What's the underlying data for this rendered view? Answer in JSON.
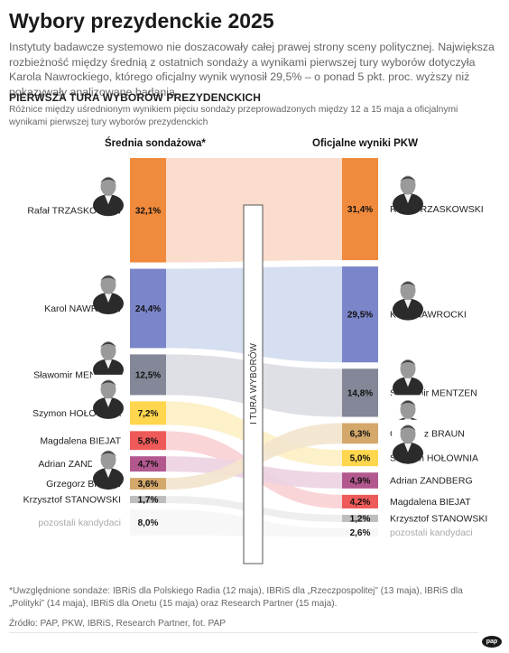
{
  "header": {
    "title": "Wybory prezydenckie 2025",
    "lead": "Instytuty badawcze systemowo nie doszacowały całej prawej strony sceny politycznej. Największa rozbieżność między średnią z ostatnich sondaży a wynikami pierwszej tury wyborów dotyczyła Karola Nawrockiego, którego oficjalny wynik wynosił 29,5% – o ponad 5 pkt. proc. wyższy niż pokazywały analizowane badania."
  },
  "section": {
    "title": "PIERWSZA TURA WYBORÓW PREZYDENCKICH",
    "description": "Różnice między uśrednionym wynikiem pięciu sondaży przeprowadzonych między 12 a 15 maja  a oficjalnymi wynikami pierwszej tury wyborów prezydenckich"
  },
  "chart_data": {
    "type": "bar",
    "left_title": "Średnia sondażowa*",
    "right_title": "Oficjalne wyniki PKW",
    "center_label": "I TURA WYBORÓW",
    "value_suffix": "%",
    "decimal_separator": ",",
    "candidates": [
      {
        "id": "trzaskowski",
        "name": "Rafał TRZASKOWSKI",
        "poll": 32.1,
        "result": 31.4,
        "color": "#f08a3c",
        "flow_color": "#f9d9c8",
        "photo": true,
        "muted": false
      },
      {
        "id": "nawrocki",
        "name": "Karol NAWROCKI",
        "poll": 24.4,
        "result": 29.5,
        "color": "#7b85c9",
        "flow_color": "#d2dcef",
        "photo": true,
        "muted": false
      },
      {
        "id": "mentzen",
        "name": "Sławomir MENTZEN",
        "poll": 12.5,
        "result": 14.8,
        "color": "#838797",
        "flow_color": "#dcdde3",
        "photo": true,
        "muted": false
      },
      {
        "id": "holownia",
        "name": "Szymon HOŁOWNIA",
        "poll": 7.2,
        "result": 5.0,
        "color": "#ffd64d",
        "flow_color": "#fdf0c4",
        "photo": true,
        "muted": false
      },
      {
        "id": "biejat",
        "name": "Magdalena BIEJAT",
        "poll": 5.8,
        "result": 4.2,
        "color": "#ee5a59",
        "flow_color": "#fad0d4",
        "photo": false,
        "muted": false
      },
      {
        "id": "zandberg",
        "name": "Adrian ZANDBERG",
        "poll": 4.7,
        "result": 4.9,
        "color": "#b2588f",
        "flow_color": "#ecd2e2",
        "photo": false,
        "muted": false
      },
      {
        "id": "braun",
        "name": "Grzegorz BRAUN",
        "poll": 3.6,
        "result": 6.3,
        "color": "#d4a86a",
        "flow_color": "#f3e4cd",
        "photo": true,
        "muted": false
      },
      {
        "id": "stanowski",
        "name": "Krzysztof STANOWSKI",
        "poll": 1.7,
        "result": 1.2,
        "color": "#bdbdbd",
        "flow_color": "#ececec",
        "photo": false,
        "muted": false
      },
      {
        "id": "pozostali",
        "name": "pozostali kandydaci",
        "poll": 8.0,
        "result": 2.6,
        "color": "#f7f7f7",
        "flow_color": "#f6f6f6",
        "photo": false,
        "muted": true
      }
    ]
  },
  "footer": {
    "note": "*Uwzględnione sondaże: IBRiS dla Polskiego Radia (12 maja), IBRiS dla „Rzeczpospolitej” (13 maja), IBRiS dla „Polityki” (14 maja), IBRiS dla Onetu (15 maja) oraz Research Partner (15 maja).",
    "source": "Źródło: PAP, PKW, IBRiS, Research Partner, fot. PAP",
    "logo": "pap"
  }
}
